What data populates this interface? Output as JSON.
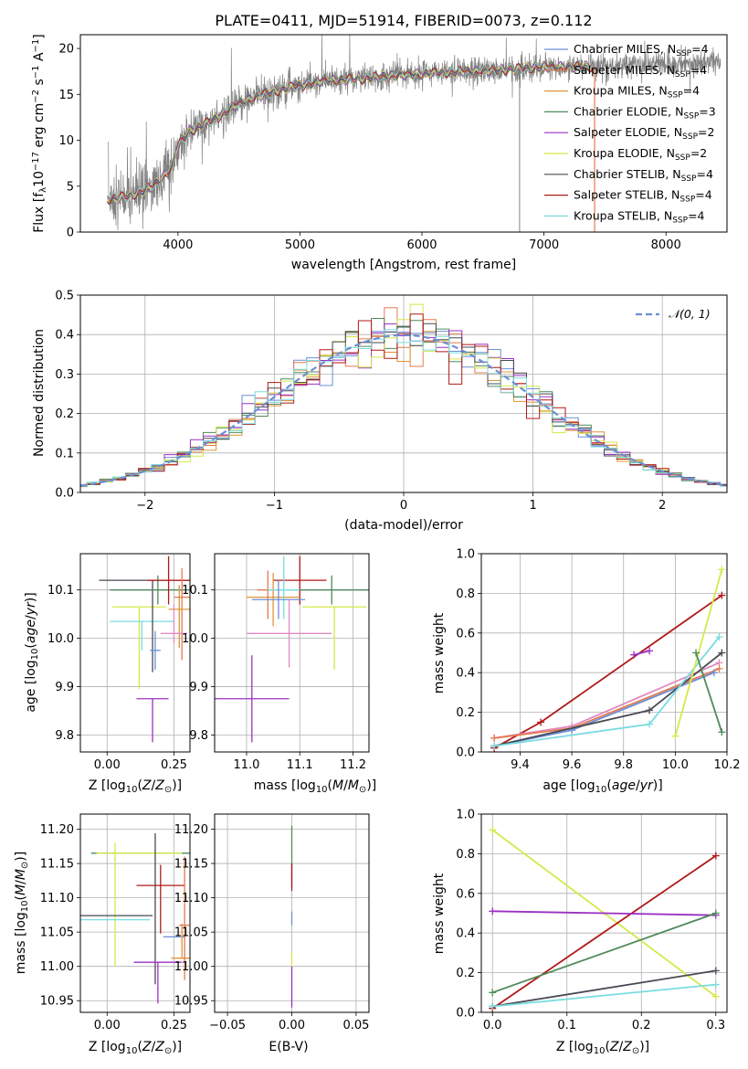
{
  "colors": {
    "chabrier_miles": "#6b8fd6",
    "salpeter_miles": "#e57a50",
    "kroupa_miles": "#e0943a",
    "chabrier_elodie": "#4f8a5c",
    "salpeter_elodie": "#9b30c2",
    "kroupa_elodie": "#d6e84a",
    "chabrier_stelib": "#4a4a55",
    "salpeter_stelib": "#b01818",
    "kroupa_stelib": "#7adbe0",
    "data": "#808080",
    "normal": "#6b8fd6",
    "pink": "#e08ac0"
  },
  "chart_data": [
    {
      "id": "spectrum",
      "type": "line",
      "title": "PLATE=0411, MJD=51914, FIBERID=0073, z=0.112",
      "xlabel": "wavelength [Angstrom, rest frame]",
      "ylabel": "Flux [fλ10⁻¹⁷ erg cm⁻² s⁻¹ A⁻¹]",
      "xlim": [
        3200,
        8500
      ],
      "ylim": [
        0,
        21.5
      ],
      "xticks": [
        4000,
        5000,
        6000,
        7000,
        8000
      ],
      "yticks": [
        0,
        5,
        10,
        15,
        20
      ],
      "legend_position": "top-right",
      "legend": [
        {
          "label": "Chabrier MILES, N",
          "sub": "SSP",
          "val": "=4",
          "color": "chabrier_miles"
        },
        {
          "label": "Salpeter MILES, N",
          "sub": "SSP",
          "val": "=4",
          "color": "salpeter_miles"
        },
        {
          "label": "Kroupa MILES, N",
          "sub": "SSP",
          "val": "=4",
          "color": "kroupa_miles"
        },
        {
          "label": "Chabrier ELODIE, N",
          "sub": "SSP",
          "val": "=3",
          "color": "chabrier_elodie"
        },
        {
          "label": "Salpeter ELODIE, N",
          "sub": "SSP",
          "val": "=2",
          "color": "salpeter_elodie"
        },
        {
          "label": "Kroupa ELODIE, N",
          "sub": "SSP",
          "val": "=2",
          "color": "kroupa_elodie"
        },
        {
          "label": "Chabrier STELIB, N",
          "sub": "SSP",
          "val": "=4",
          "color": "chabrier_stelib"
        },
        {
          "label": "Salpeter STELIB, N",
          "sub": "SSP",
          "val": "=4",
          "color": "salpeter_stelib"
        },
        {
          "label": "Kroupa STELIB, N",
          "sub": "SSP",
          "val": "=4",
          "color": "kroupa_stelib"
        }
      ],
      "continuum": [
        [
          3420,
          3.6
        ],
        [
          3600,
          3.9
        ],
        [
          3800,
          5.0
        ],
        [
          3950,
          7.0
        ],
        [
          4000,
          9.5
        ],
        [
          4100,
          11.0
        ],
        [
          4300,
          12.3
        ],
        [
          4500,
          14.0
        ],
        [
          4700,
          15.0
        ],
        [
          4900,
          15.7
        ],
        [
          5200,
          16.5
        ],
        [
          5500,
          16.7
        ],
        [
          5800,
          17.1
        ],
        [
          6200,
          17.4
        ],
        [
          6600,
          17.6
        ],
        [
          7000,
          18.0
        ],
        [
          7400,
          18.0
        ],
        [
          7800,
          18.3
        ],
        [
          8200,
          18.4
        ],
        [
          8400,
          18.5
        ]
      ],
      "model_range": [
        3420,
        7400
      ],
      "data_range": [
        3430,
        8450
      ],
      "notes": "noisy observed spectrum (grey) with 9 overlapping model fits; spikes at ~6800 and ~7400 A"
    },
    {
      "id": "residuals",
      "type": "histogram",
      "xlabel": "(data-model)/error",
      "ylabel": "Normed distribution",
      "xlim": [
        -2.5,
        2.5
      ],
      "ylim": [
        0,
        0.5
      ],
      "xticks": [
        -2,
        -1,
        0,
        1,
        2
      ],
      "yticks": [
        0.0,
        0.1,
        0.2,
        0.3,
        0.4,
        0.5
      ],
      "legend": [
        {
          "label": "𝒩(0, 1)",
          "color": "normal",
          "style": "dashed"
        }
      ],
      "legend_position": "top-right",
      "bin_width": 0.1
    },
    {
      "id": "age_vs_Z",
      "type": "errorbar",
      "xlabel": "Z [log₁₀(Z/Z⊙)]",
      "ylabel": "age  [log₁₀(age/yr)]",
      "xlim": [
        -0.1,
        0.31
      ],
      "ylim": [
        9.765,
        10.175
      ],
      "xticks": [
        0.0,
        0.25
      ],
      "yticks": [
        9.8,
        9.9,
        10.0,
        10.1
      ],
      "points": [
        {
          "c": "kroupa_elodie",
          "x": 0.12,
          "xerr": 0.1,
          "y": 10.065,
          "yerr": [
            0.17,
            0.0
          ]
        },
        {
          "c": "kroupa_stelib",
          "x": 0.13,
          "xerr": 0.12,
          "y": 10.035,
          "yerr": [
            0.06,
            0.0
          ]
        },
        {
          "c": "chabrier_stelib",
          "x": 0.17,
          "xerr": 0.2,
          "y": 10.12,
          "yerr": [
            0.19,
            0.0
          ]
        },
        {
          "c": "chabrier_elodie",
          "x": 0.19,
          "xerr": 0.18,
          "y": 10.1,
          "yerr": [
            0.03,
            0.03
          ]
        },
        {
          "c": "salpeter_stelib",
          "x": 0.23,
          "xerr": 0.08,
          "y": 10.12,
          "yerr": [
            0.05,
            0.05
          ]
        },
        {
          "c": "salpeter_miles",
          "x": 0.28,
          "xerr": 0.03,
          "y": 10.085,
          "yerr": [
            0.13,
            0.06
          ]
        },
        {
          "c": "kroupa_miles",
          "x": 0.27,
          "xerr": 0.04,
          "y": 10.06,
          "yerr": [
            0.08,
            0.05
          ]
        },
        {
          "c": "pink",
          "x": 0.25,
          "xerr": 0.05,
          "y": 10.01,
          "yerr": [
            0.02,
            0.06
          ]
        },
        {
          "c": "salpeter_elodie",
          "x": 0.17,
          "xerr": 0.06,
          "y": 9.875,
          "yerr": [
            0.09,
            0.0
          ]
        },
        {
          "c": "chabrier_miles",
          "x": 0.18,
          "xerr": 0.02,
          "y": 9.975,
          "yerr": [
            0.04,
            0.04
          ]
        }
      ]
    },
    {
      "id": "age_vs_mass",
      "type": "errorbar",
      "xlabel": "mass [log₁₀(M/M⊙)]",
      "ylabel": "",
      "xlim": [
        10.94,
        11.23
      ],
      "ylim": [
        9.765,
        10.175
      ],
      "xticks": [
        11.0,
        11.1,
        11.2
      ],
      "yticks": [
        9.8,
        9.9,
        10.0,
        10.1
      ],
      "points": [
        {
          "c": "kroupa_elodie",
          "x": 11.165,
          "xerr": 0.06,
          "y": 10.065,
          "yerr": [
            0.13,
            0.0
          ]
        },
        {
          "c": "chabrier_elodie",
          "x": 11.16,
          "xerr": 0.08,
          "y": 10.1,
          "yerr": [
            0.03,
            0.03
          ]
        },
        {
          "c": "salpeter_stelib",
          "x": 11.1,
          "xerr": 0.05,
          "y": 10.12,
          "yerr": [
            0.05,
            0.05
          ]
        },
        {
          "c": "kroupa_miles",
          "x": 11.05,
          "xerr": 0.05,
          "y": 10.085,
          "yerr": [
            0.06,
            0.05
          ]
        },
        {
          "c": "salpeter_miles",
          "x": 11.04,
          "xerr": 0.02,
          "y": 10.1,
          "yerr": [
            0.06,
            0.04
          ]
        },
        {
          "c": "kroupa_stelib",
          "x": 11.07,
          "xerr": 0.03,
          "y": 10.1,
          "yerr": [
            0.06,
            0.07
          ]
        },
        {
          "c": "chabrier_miles",
          "x": 11.06,
          "xerr": 0.05,
          "y": 10.08,
          "yerr": [
            0.04,
            0.04
          ]
        },
        {
          "c": "pink",
          "x": 11.08,
          "xerr": 0.08,
          "y": 10.01,
          "yerr": [
            0.07,
            0.07
          ]
        },
        {
          "c": "salpeter_elodie",
          "x": 11.01,
          "xerr": 0.07,
          "y": 9.875,
          "yerr": [
            0.09,
            0.09
          ]
        }
      ]
    },
    {
      "id": "weight_vs_age",
      "type": "line",
      "xlabel": "age  [log₁₀(age/yr)]",
      "ylabel": "mass weight",
      "xlim": [
        9.25,
        10.2
      ],
      "ylim": [
        0,
        1.0
      ],
      "xticks": [
        9.4,
        9.6,
        9.8,
        10.0,
        10.2
      ],
      "yticks": [
        0.0,
        0.2,
        0.4,
        0.6,
        0.8,
        1.0
      ],
      "series": [
        {
          "c": "salpeter_stelib",
          "x": [
            9.3,
            9.48,
            10.18
          ],
          "y": [
            0.02,
            0.15,
            0.79
          ]
        },
        {
          "c": "pink",
          "x": [
            9.3,
            9.6,
            10.17
          ],
          "y": [
            0.07,
            0.13,
            0.45
          ]
        },
        {
          "c": "salpeter_miles",
          "x": [
            9.3,
            9.6,
            10.17
          ],
          "y": [
            0.07,
            0.12,
            0.42
          ]
        },
        {
          "c": "chabrier_miles",
          "x": [
            9.3,
            9.6,
            10.15
          ],
          "y": [
            0.03,
            0.11,
            0.4
          ]
        },
        {
          "c": "chabrier_stelib",
          "x": [
            9.3,
            9.9,
            10.18
          ],
          "y": [
            0.03,
            0.21,
            0.5
          ]
        },
        {
          "c": "kroupa_stelib",
          "x": [
            9.3,
            9.9,
            10.17
          ],
          "y": [
            0.03,
            0.14,
            0.58
          ]
        },
        {
          "c": "kroupa_elodie",
          "x": [
            10.0,
            10.18
          ],
          "y": [
            0.08,
            0.92
          ]
        },
        {
          "c": "chabrier_elodie",
          "x": [
            10.08,
            10.18
          ],
          "y": [
            0.5,
            0.1
          ]
        },
        {
          "c": "salpeter_elodie",
          "x": [
            9.84,
            9.9
          ],
          "y": [
            0.49,
            0.51
          ]
        }
      ]
    },
    {
      "id": "mass_vs_Z",
      "type": "errorbar",
      "xlabel": "Z [log₁₀(Z/Z⊙)]",
      "ylabel": "mass [log₁₀(M/M⊙)]",
      "xlim": [
        -0.1,
        0.31
      ],
      "ylim": [
        10.933,
        11.222
      ],
      "xticks": [
        0.0,
        0.25
      ],
      "yticks": [
        10.95,
        11.0,
        11.05,
        11.1,
        11.15,
        11.2
      ],
      "points": [
        {
          "c": "kroupa_elodie",
          "x": 0.03,
          "xerr": 0.0,
          "y": 11.0,
          "yerr": [
            0.0,
            0.18
          ]
        },
        {
          "c": "chabrier_elodie",
          "x": 0.17,
          "xerr": 0.23,
          "y": 11.165,
          "yerr": [
            0.0,
            0.0
          ]
        },
        {
          "c": "kroupa_elodie",
          "x": 0.12,
          "xerr": 0.16,
          "y": 11.165,
          "yerr": [
            0.0,
            0.0
          ]
        },
        {
          "c": "salpeter_stelib",
          "x": 0.2,
          "xerr": 0.09,
          "y": 11.118,
          "yerr": [
            0.07,
            0.03
          ]
        },
        {
          "c": "chabrier_stelib",
          "x": 0.0,
          "xerr": 0.17,
          "y": 11.074,
          "yerr": [
            0.0,
            0.0
          ]
        },
        {
          "c": "kroupa_stelib",
          "x": 0.0,
          "xerr": 0.16,
          "y": 11.068,
          "yerr": [
            0.0,
            0.0
          ]
        },
        {
          "c": "chabrier_stelib",
          "x": 0.18,
          "xerr": 0.0,
          "y": 11.074,
          "yerr": [
            0.1,
            0.12
          ]
        },
        {
          "c": "salpeter_elodie",
          "x": 0.19,
          "xerr": 0.09,
          "y": 11.006,
          "yerr": [
            0.06,
            0.0
          ]
        },
        {
          "c": "chabrier_miles",
          "x": 0.25,
          "xerr": 0.04,
          "y": 11.043,
          "yerr": [
            0.0,
            0.0
          ]
        },
        {
          "c": "kroupa_miles",
          "x": 0.28,
          "xerr": 0.04,
          "y": 11.012,
          "yerr": [
            0.0,
            0.05
          ]
        },
        {
          "c": "salpeter_miles",
          "x": 0.29,
          "xerr": 0.02,
          "y": 11.06,
          "yerr": [
            0.08,
            0.1
          ]
        }
      ]
    },
    {
      "id": "mass_vs_ebv",
      "type": "errorbar",
      "xlabel": "E(B-V)",
      "ylabel": "",
      "xlim": [
        -0.06,
        0.06
      ],
      "ylim": [
        10.933,
        11.222
      ],
      "xticks": [
        -0.05,
        0.0,
        0.05
      ],
      "yticks": [
        10.95,
        11.0,
        11.05,
        11.1,
        11.15,
        11.2
      ],
      "points": [
        {
          "c": "chabrier_elodie",
          "x": 0.0,
          "xerr": 0.0,
          "y": 11.165,
          "yerr": [
            0.05,
            0.04
          ]
        },
        {
          "c": "salpeter_stelib",
          "x": 0.0,
          "xerr": 0.0,
          "y": 11.12,
          "yerr": [
            0.01,
            0.03
          ]
        },
        {
          "c": "salpeter_elodie",
          "x": 0.0,
          "xerr": 0.0,
          "y": 11.0,
          "yerr": [
            0.06,
            0.0
          ]
        },
        {
          "c": "kroupa_elodie",
          "x": 0.0,
          "xerr": 0.0,
          "y": 11.0,
          "yerr": [
            0.0,
            0.02
          ]
        },
        {
          "c": "chabrier_miles",
          "x": 0.0,
          "xerr": 0.0,
          "y": 11.07,
          "yerr": [
            0.01,
            0.01
          ]
        }
      ]
    },
    {
      "id": "weight_vs_Z",
      "type": "line",
      "xlabel": "Z [log₁₀(Z/Z⊙)]",
      "ylabel": "mass weight",
      "xlim": [
        -0.015,
        0.315
      ],
      "ylim": [
        0,
        1.0
      ],
      "xticks": [
        0.0,
        0.1,
        0.2,
        0.3
      ],
      "yticks": [
        0.0,
        0.2,
        0.4,
        0.6,
        0.8,
        1.0
      ],
      "series": [
        {
          "c": "kroupa_elodie",
          "x": [
            0.0,
            0.3
          ],
          "y": [
            0.92,
            0.08
          ]
        },
        {
          "c": "salpeter_stelib",
          "x": [
            0.0,
            0.3
          ],
          "y": [
            0.02,
            0.79
          ]
        },
        {
          "c": "salpeter_elodie",
          "x": [
            0.0,
            0.3
          ],
          "y": [
            0.51,
            0.49
          ]
        },
        {
          "c": "chabrier_elodie",
          "x": [
            0.0,
            0.3
          ],
          "y": [
            0.1,
            0.5
          ]
        },
        {
          "c": "chabrier_stelib",
          "x": [
            0.0,
            0.3
          ],
          "y": [
            0.03,
            0.21
          ]
        },
        {
          "c": "kroupa_stelib",
          "x": [
            0.0,
            0.3
          ],
          "y": [
            0.03,
            0.14
          ]
        }
      ]
    }
  ]
}
